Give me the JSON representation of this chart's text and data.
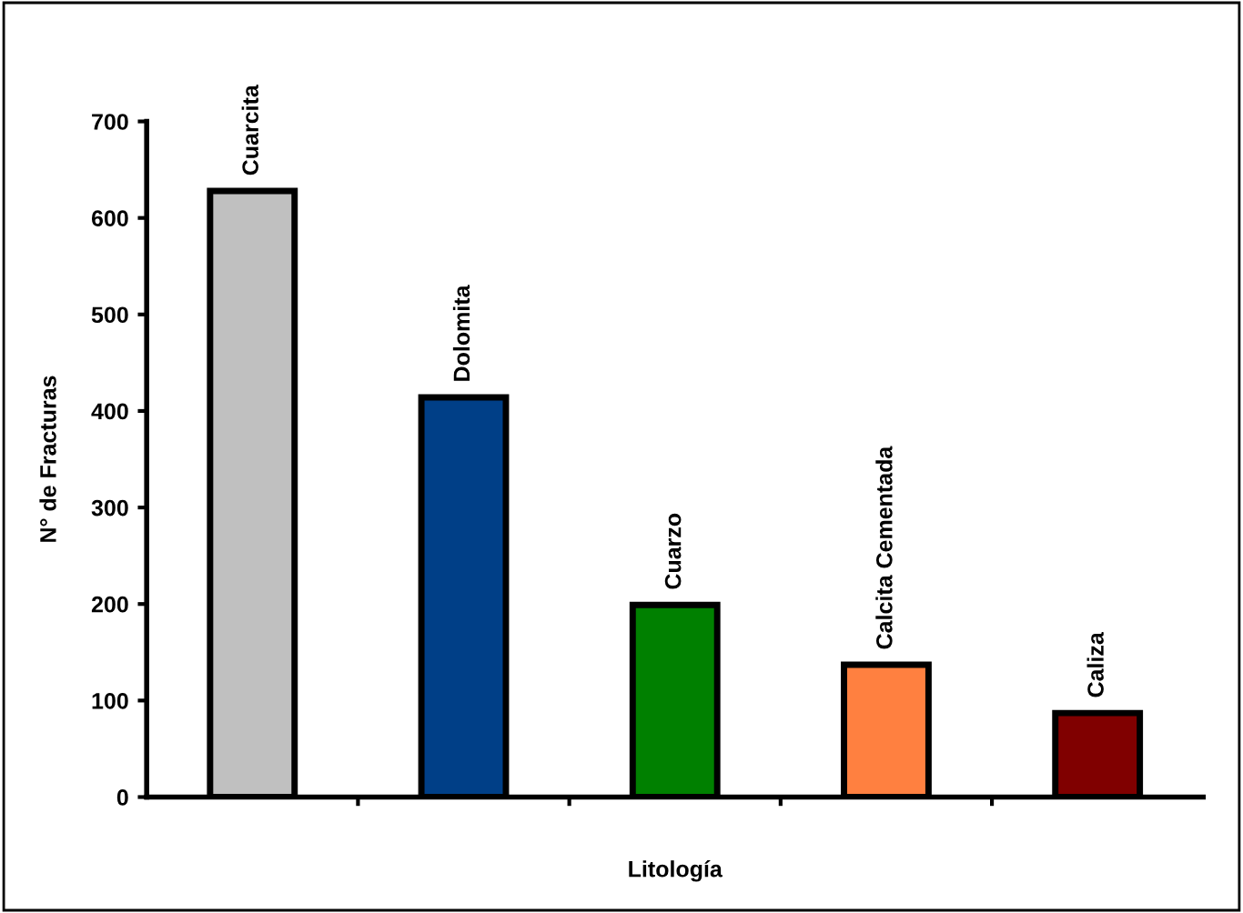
{
  "chart_data": {
    "type": "bar",
    "xlabel": "Litología",
    "ylabel": "N° de Fracturas",
    "categories": [
      "Cuarcita",
      "Dolomita",
      "Cuarzo",
      "Calcita Cementada",
      "Caliza"
    ],
    "values": [
      628,
      414,
      199,
      137,
      87
    ],
    "colors": [
      "#c0c0c0",
      "#003f87",
      "#008000",
      "#ff8040",
      "#800000"
    ],
    "ylim": [
      0,
      700
    ],
    "yticks": [
      0,
      100,
      200,
      300,
      400,
      500,
      600,
      700
    ],
    "grid": false,
    "legend": false
  }
}
